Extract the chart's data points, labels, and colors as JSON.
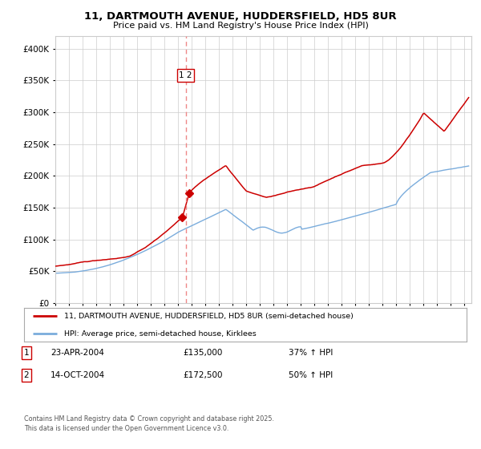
{
  "title_line1": "11, DARTMOUTH AVENUE, HUDDERSFIELD, HD5 8UR",
  "title_line2": "Price paid vs. HM Land Registry's House Price Index (HPI)",
  "legend_line1": "11, DARTMOUTH AVENUE, HUDDERSFIELD, HD5 8UR (semi-detached house)",
  "legend_line2": "HPI: Average price, semi-detached house, Kirklees",
  "transaction1_date": "23-APR-2004",
  "transaction1_price": "£135,000",
  "transaction1_hpi": "37% ↑ HPI",
  "transaction2_date": "14-OCT-2004",
  "transaction2_price": "£172,500",
  "transaction2_hpi": "50% ↑ HPI",
  "footer": "Contains HM Land Registry data © Crown copyright and database right 2025.\nThis data is licensed under the Open Government Licence v3.0.",
  "red_color": "#cc0000",
  "blue_color": "#7aacdc",
  "dashed_line_color": "#ee8888",
  "background_color": "#ffffff",
  "grid_color": "#cccccc",
  "y_max": 420000,
  "y_min": 0,
  "sale1_year": 2004.31,
  "sale1_value": 135000,
  "sale2_year": 2004.79,
  "sale2_value": 172500,
  "vline_x": 2004.55
}
